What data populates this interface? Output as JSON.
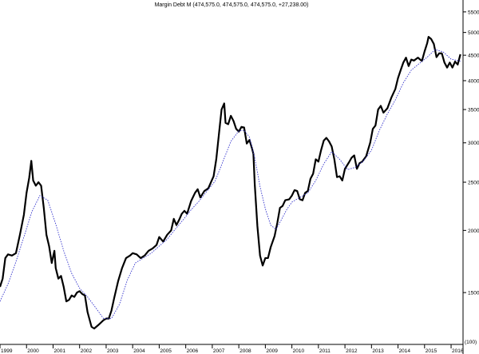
{
  "chart_data": {
    "type": "line",
    "title": "Margin Debt M (474,575.0, 474,575.0, 474,575.0, +27,238.00)",
    "y_scale": "log",
    "ylim": [
      1180,
      5600
    ],
    "xlim": [
      1999.0,
      2016.45
    ],
    "y_ticks": [
      1500,
      2000,
      2500,
      3000,
      3500,
      4000,
      4500,
      5000,
      5500
    ],
    "x_ticks": [
      {
        "label": "1999",
        "value": 1999.0
      },
      {
        "label": "2000",
        "value": 2000.0
      },
      {
        "label": "2001",
        "value": 2001.0
      },
      {
        "label": "2002",
        "value": 2002.0
      },
      {
        "label": "2003",
        "value": 2003.0
      },
      {
        "label": "2004",
        "value": 2004.0
      },
      {
        "label": "2005",
        "value": 2005.0
      },
      {
        "label": "2006",
        "value": 2006.0
      },
      {
        "label": "2007",
        "value": 2007.0
      },
      {
        "label": "2008",
        "value": 2008.0
      },
      {
        "label": "2009",
        "value": 2009.0
      },
      {
        "label": "2010",
        "value": 2010.0
      },
      {
        "label": "2011",
        "value": 2011.0
      },
      {
        "label": "2012",
        "value": 2012.0
      },
      {
        "label": "2013",
        "value": 2013.0
      },
      {
        "label": "2014",
        "value": 2014.0
      },
      {
        "label": "2015",
        "value": 2015.0
      },
      {
        "label": "2016",
        "value": 2016.0
      }
    ],
    "axis_note": "(100)",
    "series": [
      {
        "line_style": "solid",
        "color": "#000000",
        "points": [
          [
            1999.0,
            1540
          ],
          [
            1999.1,
            1600
          ],
          [
            1999.2,
            1760
          ],
          [
            1999.3,
            1790
          ],
          [
            1999.45,
            1780
          ],
          [
            1999.6,
            1800
          ],
          [
            1999.75,
            1960
          ],
          [
            1999.9,
            2150
          ],
          [
            2000.0,
            2380
          ],
          [
            2000.1,
            2550
          ],
          [
            2000.18,
            2760
          ],
          [
            2000.25,
            2520
          ],
          [
            2000.35,
            2460
          ],
          [
            2000.45,
            2500
          ],
          [
            2000.55,
            2460
          ],
          [
            2000.65,
            2220
          ],
          [
            2000.75,
            1960
          ],
          [
            2000.85,
            1860
          ],
          [
            2000.95,
            1720
          ],
          [
            2001.05,
            1820
          ],
          [
            2001.1,
            1680
          ],
          [
            2001.2,
            1600
          ],
          [
            2001.3,
            1620
          ],
          [
            2001.4,
            1540
          ],
          [
            2001.5,
            1440
          ],
          [
            2001.6,
            1450
          ],
          [
            2001.7,
            1480
          ],
          [
            2001.8,
            1470
          ],
          [
            2001.9,
            1500
          ],
          [
            2002.0,
            1510
          ],
          [
            2002.1,
            1490
          ],
          [
            2002.2,
            1480
          ],
          [
            2002.3,
            1370
          ],
          [
            2002.45,
            1280
          ],
          [
            2002.55,
            1270
          ],
          [
            2002.7,
            1290
          ],
          [
            2002.9,
            1320
          ],
          [
            2003.0,
            1330
          ],
          [
            2003.1,
            1330
          ],
          [
            2003.2,
            1380
          ],
          [
            2003.3,
            1460
          ],
          [
            2003.45,
            1580
          ],
          [
            2003.6,
            1680
          ],
          [
            2003.75,
            1760
          ],
          [
            2003.9,
            1780
          ],
          [
            2004.0,
            1800
          ],
          [
            2004.15,
            1790
          ],
          [
            2004.3,
            1760
          ],
          [
            2004.45,
            1780
          ],
          [
            2004.6,
            1820
          ],
          [
            2004.75,
            1840
          ],
          [
            2004.9,
            1870
          ],
          [
            2005.0,
            1940
          ],
          [
            2005.15,
            1900
          ],
          [
            2005.3,
            1960
          ],
          [
            2005.45,
            2000
          ],
          [
            2005.55,
            2110
          ],
          [
            2005.65,
            2050
          ],
          [
            2005.75,
            2100
          ],
          [
            2005.85,
            2160
          ],
          [
            2005.95,
            2190
          ],
          [
            2006.05,
            2160
          ],
          [
            2006.2,
            2290
          ],
          [
            2006.35,
            2380
          ],
          [
            2006.45,
            2420
          ],
          [
            2006.55,
            2330
          ],
          [
            2006.7,
            2400
          ],
          [
            2006.85,
            2430
          ],
          [
            2006.95,
            2500
          ],
          [
            2007.05,
            2570
          ],
          [
            2007.15,
            2780
          ],
          [
            2007.25,
            3120
          ],
          [
            2007.35,
            3500
          ],
          [
            2007.45,
            3600
          ],
          [
            2007.5,
            3290
          ],
          [
            2007.6,
            3270
          ],
          [
            2007.7,
            3400
          ],
          [
            2007.8,
            3320
          ],
          [
            2007.9,
            3200
          ],
          [
            2008.0,
            3160
          ],
          [
            2008.1,
            3230
          ],
          [
            2008.2,
            3220
          ],
          [
            2008.3,
            2990
          ],
          [
            2008.4,
            3040
          ],
          [
            2008.5,
            2920
          ],
          [
            2008.55,
            2850
          ],
          [
            2008.6,
            2480
          ],
          [
            2008.7,
            2040
          ],
          [
            2008.8,
            1780
          ],
          [
            2008.9,
            1700
          ],
          [
            2009.0,
            1760
          ],
          [
            2009.1,
            1760
          ],
          [
            2009.2,
            1850
          ],
          [
            2009.35,
            1950
          ],
          [
            2009.45,
            2070
          ],
          [
            2009.55,
            2220
          ],
          [
            2009.65,
            2240
          ],
          [
            2009.75,
            2300
          ],
          [
            2009.9,
            2310
          ],
          [
            2010.0,
            2350
          ],
          [
            2010.1,
            2410
          ],
          [
            2010.2,
            2400
          ],
          [
            2010.3,
            2310
          ],
          [
            2010.4,
            2300
          ],
          [
            2010.5,
            2380
          ],
          [
            2010.6,
            2400
          ],
          [
            2010.7,
            2540
          ],
          [
            2010.8,
            2600
          ],
          [
            2010.9,
            2780
          ],
          [
            2011.0,
            2750
          ],
          [
            2011.1,
            2900
          ],
          [
            2011.2,
            3030
          ],
          [
            2011.3,
            3070
          ],
          [
            2011.4,
            3020
          ],
          [
            2011.5,
            2950
          ],
          [
            2011.6,
            2780
          ],
          [
            2011.7,
            2560
          ],
          [
            2011.8,
            2570
          ],
          [
            2011.9,
            2520
          ],
          [
            2012.0,
            2660
          ],
          [
            2012.15,
            2740
          ],
          [
            2012.25,
            2800
          ],
          [
            2012.35,
            2830
          ],
          [
            2012.45,
            2660
          ],
          [
            2012.55,
            2730
          ],
          [
            2012.65,
            2750
          ],
          [
            2012.8,
            2820
          ],
          [
            2012.95,
            3000
          ],
          [
            2013.05,
            3200
          ],
          [
            2013.15,
            3250
          ],
          [
            2013.25,
            3500
          ],
          [
            2013.35,
            3560
          ],
          [
            2013.45,
            3450
          ],
          [
            2013.6,
            3520
          ],
          [
            2013.75,
            3700
          ],
          [
            2013.9,
            3850
          ],
          [
            2014.0,
            4050
          ],
          [
            2014.1,
            4200
          ],
          [
            2014.2,
            4350
          ],
          [
            2014.3,
            4450
          ],
          [
            2014.4,
            4280
          ],
          [
            2014.5,
            4410
          ],
          [
            2014.6,
            4390
          ],
          [
            2014.75,
            4450
          ],
          [
            2014.9,
            4380
          ],
          [
            2015.0,
            4580
          ],
          [
            2015.1,
            4760
          ],
          [
            2015.15,
            4900
          ],
          [
            2015.25,
            4850
          ],
          [
            2015.35,
            4740
          ],
          [
            2015.45,
            4460
          ],
          [
            2015.55,
            4540
          ],
          [
            2015.65,
            4540
          ],
          [
            2015.75,
            4350
          ],
          [
            2015.85,
            4250
          ],
          [
            2015.95,
            4350
          ],
          [
            2016.05,
            4250
          ],
          [
            2016.15,
            4370
          ],
          [
            2016.25,
            4310
          ],
          [
            2016.35,
            4520
          ]
        ]
      },
      {
        "line_style": "dotted",
        "color": "#3333cc",
        "points": [
          [
            1999.0,
            1440
          ],
          [
            1999.3,
            1560
          ],
          [
            1999.6,
            1730
          ],
          [
            1999.9,
            1940
          ],
          [
            2000.2,
            2180
          ],
          [
            2000.5,
            2350
          ],
          [
            2000.8,
            2300
          ],
          [
            2001.1,
            2060
          ],
          [
            2001.4,
            1820
          ],
          [
            2001.7,
            1640
          ],
          [
            2002.0,
            1530
          ],
          [
            2002.3,
            1470
          ],
          [
            2002.6,
            1400
          ],
          [
            2002.9,
            1330
          ],
          [
            2003.2,
            1330
          ],
          [
            2003.5,
            1420
          ],
          [
            2003.8,
            1590
          ],
          [
            2004.1,
            1720
          ],
          [
            2004.4,
            1760
          ],
          [
            2004.7,
            1800
          ],
          [
            2005.0,
            1860
          ],
          [
            2005.3,
            1920
          ],
          [
            2005.6,
            2010
          ],
          [
            2005.9,
            2100
          ],
          [
            2006.2,
            2200
          ],
          [
            2006.5,
            2290
          ],
          [
            2006.8,
            2400
          ],
          [
            2007.1,
            2510
          ],
          [
            2007.4,
            2750
          ],
          [
            2007.7,
            3020
          ],
          [
            2008.0,
            3170
          ],
          [
            2008.2,
            3180
          ],
          [
            2008.4,
            3080
          ],
          [
            2008.6,
            2800
          ],
          [
            2008.8,
            2450
          ],
          [
            2009.0,
            2210
          ],
          [
            2009.2,
            2050
          ],
          [
            2009.4,
            2010
          ],
          [
            2009.6,
            2100
          ],
          [
            2009.8,
            2200
          ],
          [
            2010.0,
            2280
          ],
          [
            2010.3,
            2330
          ],
          [
            2010.6,
            2380
          ],
          [
            2010.9,
            2520
          ],
          [
            2011.2,
            2720
          ],
          [
            2011.5,
            2880
          ],
          [
            2011.8,
            2780
          ],
          [
            2012.1,
            2650
          ],
          [
            2012.4,
            2680
          ],
          [
            2012.7,
            2760
          ],
          [
            2013.0,
            2900
          ],
          [
            2013.3,
            3180
          ],
          [
            2013.6,
            3430
          ],
          [
            2013.9,
            3660
          ],
          [
            2014.2,
            3960
          ],
          [
            2014.5,
            4200
          ],
          [
            2014.8,
            4330
          ],
          [
            2015.1,
            4460
          ],
          [
            2015.4,
            4620
          ],
          [
            2015.7,
            4570
          ],
          [
            2016.0,
            4420
          ],
          [
            2016.35,
            4380
          ]
        ]
      }
    ]
  }
}
